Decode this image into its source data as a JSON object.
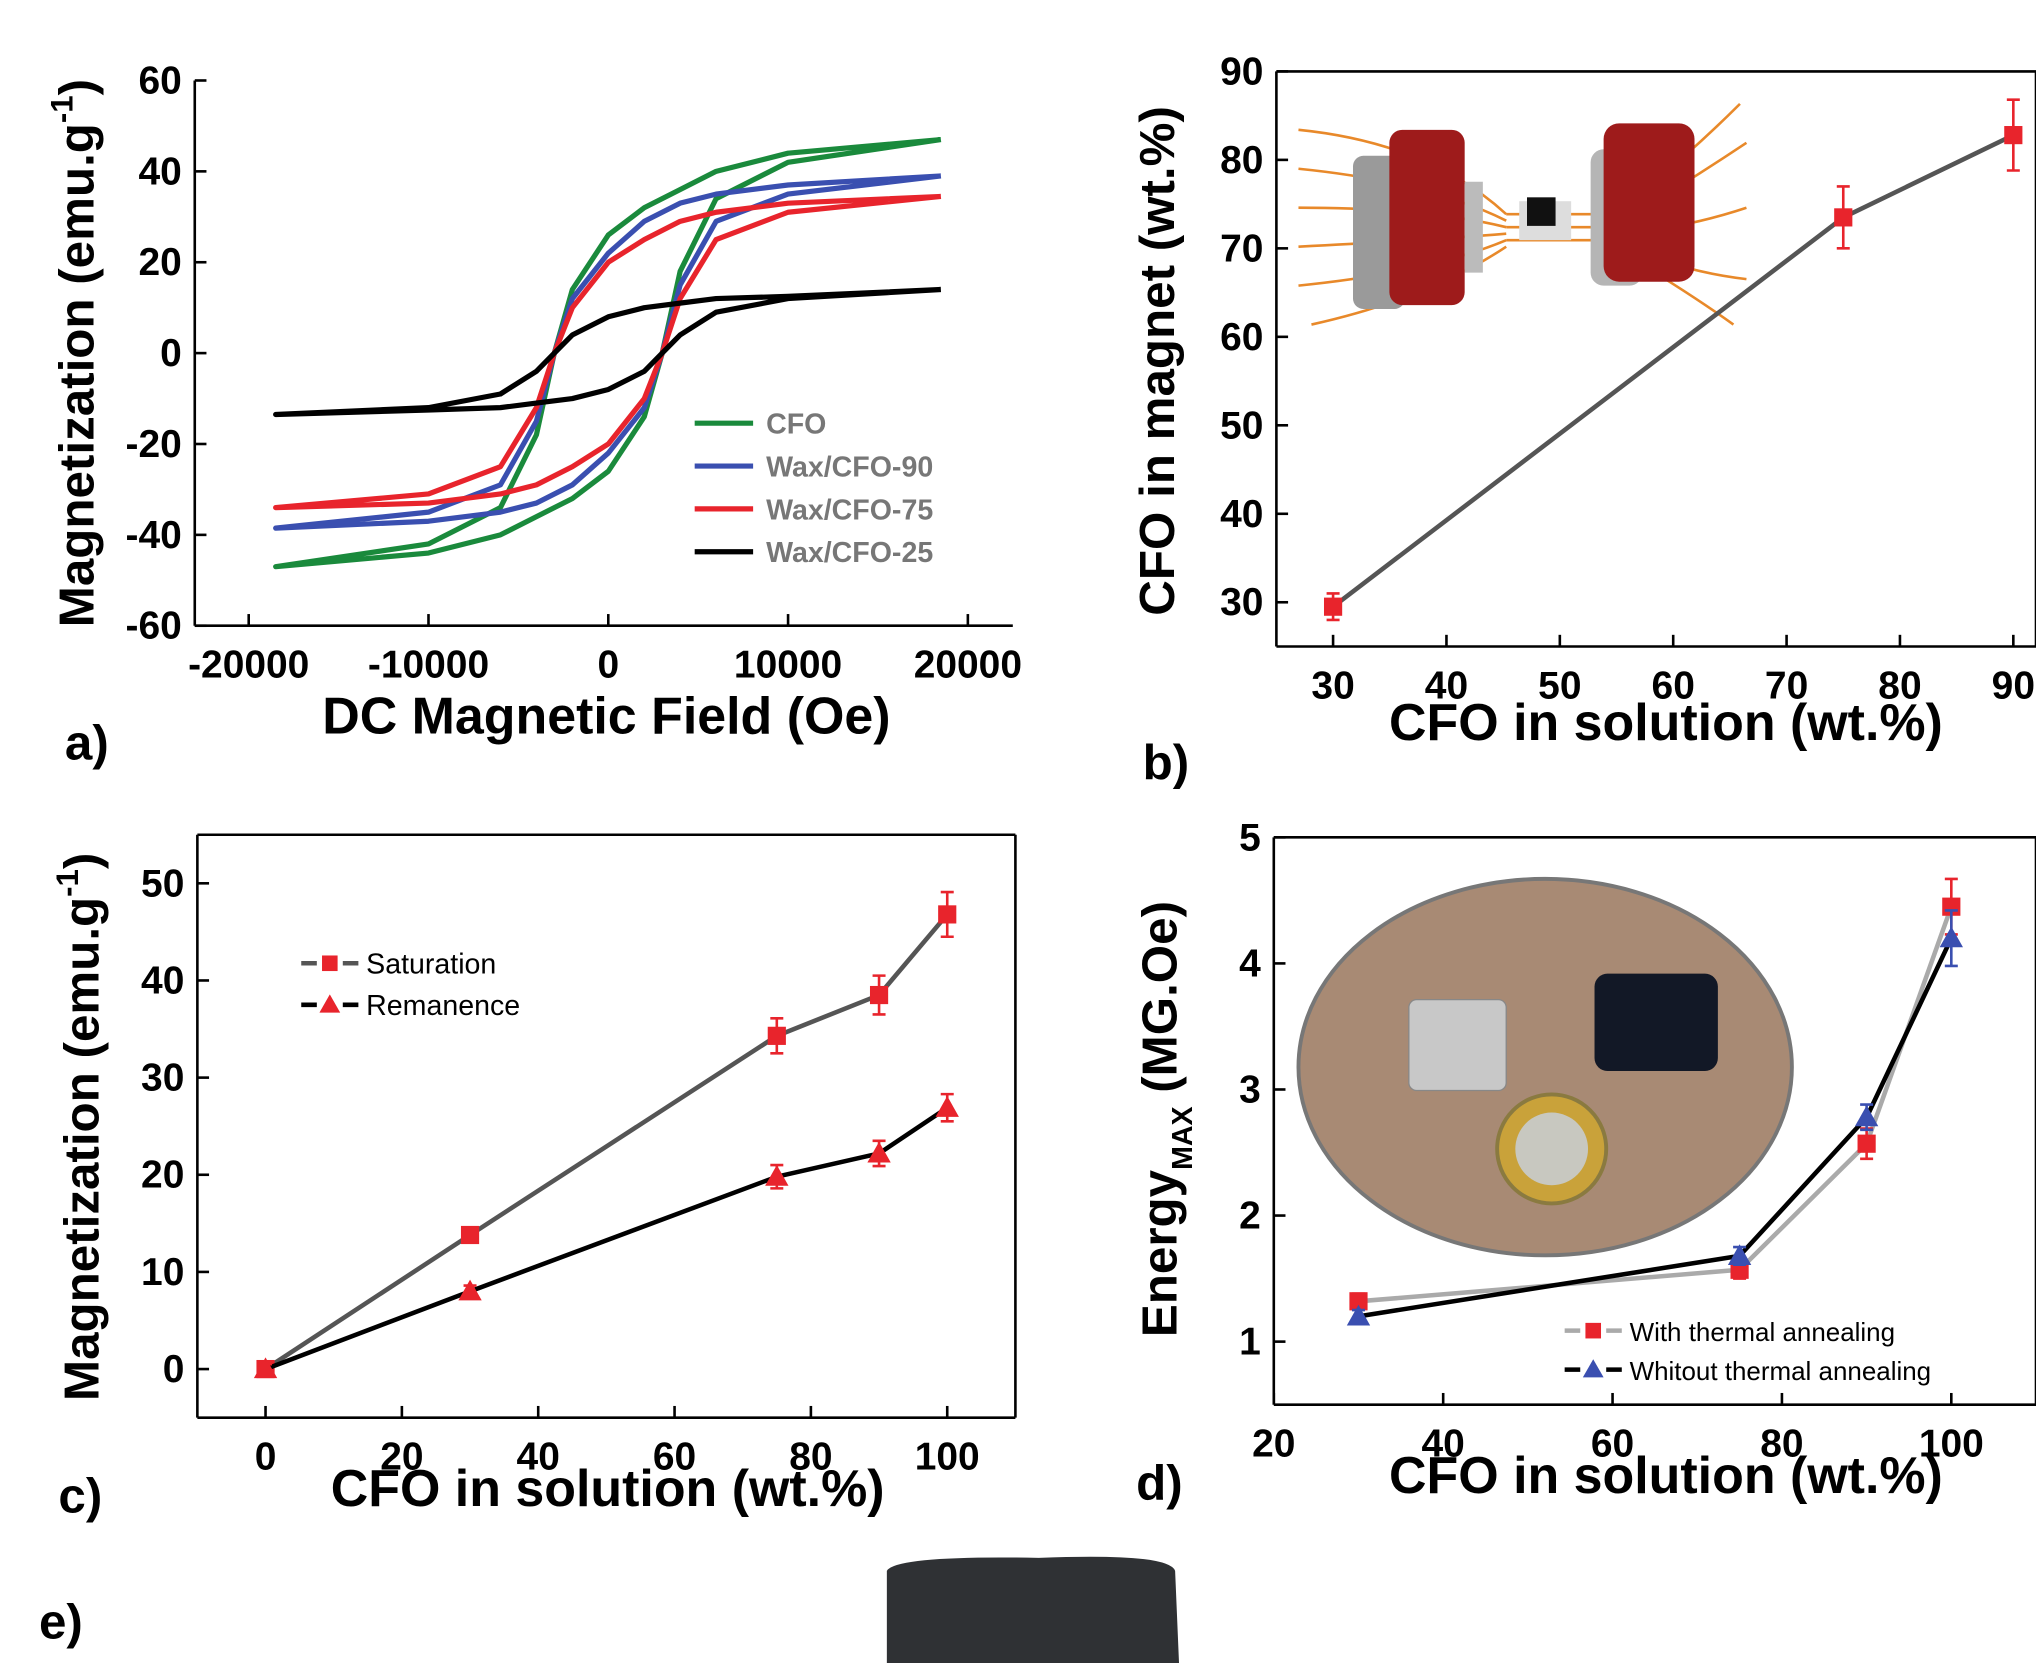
{
  "chart_data": [
    {
      "type": "line",
      "panel_label": "a)",
      "xlabel": "DC Magnetic Field (Oe)",
      "ylabel": "Magnetization (emu.g",
      "ylabel_sup": "-1",
      "ylabel_end": ")",
      "xlim": [
        -23000,
        22500
      ],
      "ylim": [
        -60,
        60
      ],
      "xticks": [
        -20000,
        -10000,
        0,
        10000,
        20000
      ],
      "yticks": [
        -60,
        -40,
        -20,
        0,
        20,
        40,
        60
      ],
      "series": [
        {
          "name": "CFO",
          "color": "#1a8a3c",
          "x": [
            18500,
            10000,
            6000,
            4000,
            2000,
            0,
            -2000,
            -3000,
            -4000,
            -6000,
            -10000,
            -18500,
            -10000,
            -6000,
            -4000,
            -2000,
            0,
            2000,
            3000,
            4000,
            6000,
            10000,
            18500
          ],
          "values": [
            47,
            44,
            40,
            36,
            32,
            26,
            14,
            0,
            -18,
            -34,
            -42,
            -47,
            -44,
            -40,
            -36,
            -32,
            -26,
            -14,
            0,
            18,
            34,
            42,
            47
          ]
        },
        {
          "name": "Wax/CFO-90",
          "color": "#3a4fb0",
          "x": [
            18500,
            10000,
            6000,
            4000,
            2000,
            0,
            -2000,
            -3000,
            -4000,
            -6000,
            -10000,
            -18500,
            -10000,
            -6000,
            -4000,
            -2000,
            0,
            2000,
            3000,
            4000,
            6000,
            10000,
            18500
          ],
          "values": [
            39,
            37,
            35,
            33,
            29,
            22,
            12,
            0,
            -15,
            -29,
            -35,
            -38.5,
            -37,
            -35,
            -33,
            -29,
            -22,
            -12,
            0,
            15,
            29,
            35,
            39
          ]
        },
        {
          "name": "Wax/CFO-75",
          "color": "#e8242c",
          "x": [
            18500,
            10000,
            6000,
            4000,
            2000,
            0,
            -2000,
            -3000,
            -4000,
            -6000,
            -10000,
            -18500,
            -10000,
            -6000,
            -4000,
            -2000,
            0,
            2000,
            3000,
            4000,
            6000,
            10000,
            18500
          ],
          "values": [
            34.5,
            33,
            31,
            29,
            25,
            20,
            10,
            0,
            -12,
            -25,
            -31,
            -34,
            -33,
            -31,
            -29,
            -25,
            -20,
            -10,
            0,
            12,
            25,
            31,
            34.5
          ]
        },
        {
          "name": "Wax/CFO-25",
          "color": "#000000",
          "x": [
            18500,
            10000,
            6000,
            4000,
            2000,
            0,
            -2000,
            -3000,
            -4000,
            -6000,
            -10000,
            -18500,
            -10000,
            -6000,
            -4000,
            -2000,
            0,
            2000,
            3000,
            4000,
            6000,
            10000,
            18500
          ],
          "values": [
            14,
            12.5,
            12,
            11,
            10,
            8,
            4,
            0,
            -4,
            -9,
            -12,
            -13.5,
            -12.5,
            -12,
            -11,
            -10,
            -8,
            -4,
            0,
            4,
            9,
            12,
            14
          ]
        }
      ]
    },
    {
      "type": "line",
      "panel_label": "b)",
      "xlabel": "CFO in solution (wt.%)",
      "ylabel": "CFO in magnet (wt.%)",
      "xlim": [
        25,
        92
      ],
      "ylim": [
        25,
        90
      ],
      "xticks": [
        30,
        40,
        50,
        60,
        70,
        80,
        90
      ],
      "yticks": [
        30,
        40,
        50,
        60,
        70,
        80,
        90
      ],
      "x": [
        30,
        75,
        90
      ],
      "series": [
        {
          "color": "#555555",
          "marker_color": "#e8242c",
          "marker": "square",
          "values": [
            29.5,
            73.5,
            82.8
          ],
          "error": [
            1.5,
            3.5,
            4
          ]
        }
      ]
    },
    {
      "type": "line",
      "panel_label": "c)",
      "xlabel": "CFO in solution (wt.%)",
      "ylabel": "Magnetization (emu.g",
      "ylabel_sup": "-1",
      "ylabel_end": ")",
      "xlim": [
        -10,
        110
      ],
      "ylim": [
        -5,
        55
      ],
      "xticks": [
        0,
        20,
        40,
        60,
        80,
        100
      ],
      "yticks": [
        0,
        10,
        20,
        30,
        40,
        50
      ],
      "x": [
        0,
        30,
        75,
        90,
        100
      ],
      "series": [
        {
          "name": "Saturation",
          "color": "#555555",
          "marker_color": "#e8242c",
          "marker": "square",
          "values": [
            0,
            13.8,
            34.3,
            38.5,
            46.8
          ],
          "error": [
            0.5,
            0.6,
            1.8,
            2,
            2.3
          ]
        },
        {
          "name": "Remanence",
          "color": "#000000",
          "marker_color": "#e8242c",
          "marker": "triangle",
          "values": [
            0,
            8,
            19.8,
            22.2,
            26.9
          ],
          "error": [
            0.5,
            0.6,
            1.2,
            1.3,
            1.4
          ]
        }
      ]
    },
    {
      "type": "line",
      "panel_label": "d)",
      "xlabel": "CFO in solution (wt.%)",
      "ylabel": "Energy",
      "ylabel_sub": "MAX",
      "ylabel_end": " (MG.Oe)",
      "xlim": [
        20,
        110
      ],
      "ylim": [
        0.5,
        5
      ],
      "xticks": [
        20,
        40,
        60,
        80,
        100
      ],
      "yticks": [
        1,
        2,
        3,
        4,
        5
      ],
      "x": [
        30,
        75,
        90,
        100
      ],
      "series": [
        {
          "name": "With thermal annealing",
          "color": "#aaaaaa",
          "marker_color": "#e8242c",
          "marker": "square",
          "values": [
            1.32,
            1.57,
            2.57,
            4.45
          ],
          "error": [
            0.06,
            0.07,
            0.12,
            0.22
          ]
        },
        {
          "name": "Whitout thermal annealing",
          "color": "#000000",
          "marker_color": "#3a4fb0",
          "marker": "triangle",
          "values": [
            1.2,
            1.68,
            2.78,
            4.2
          ],
          "error": [
            0.05,
            0.07,
            0.1,
            0.22
          ]
        }
      ]
    }
  ],
  "panel_e": {
    "panel_label": "e)"
  }
}
